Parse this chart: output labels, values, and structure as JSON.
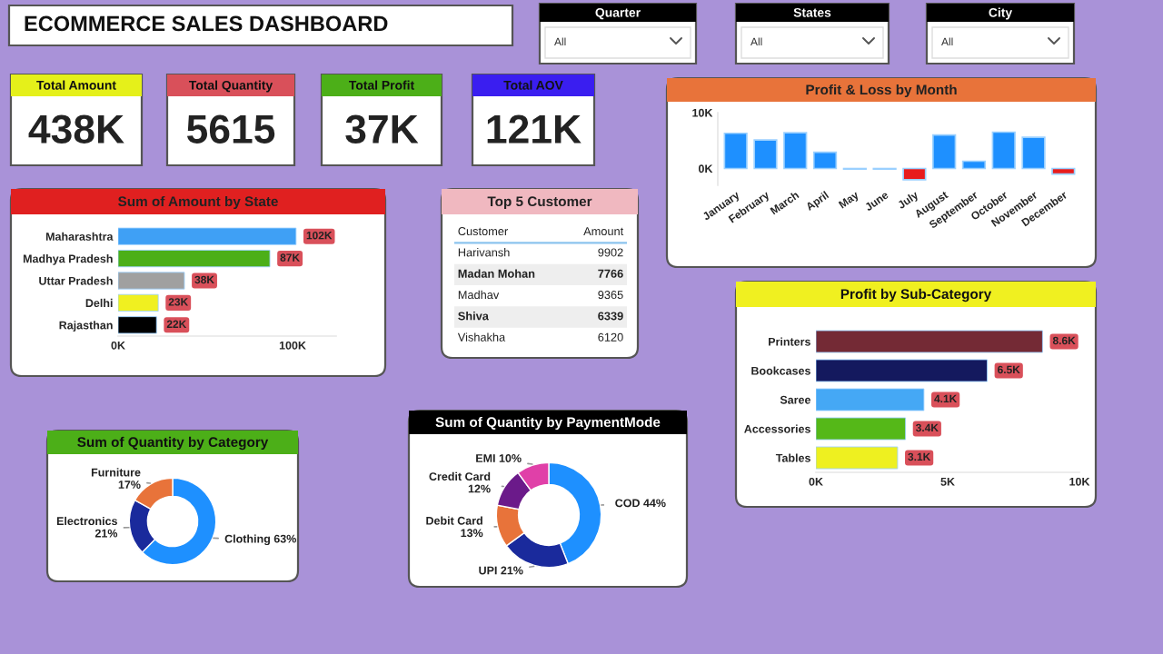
{
  "chart_data": [
    {
      "type": "other",
      "title": "ECOMMERCE SALES DASHBOARD"
    },
    {
      "type": "other",
      "title": "Quarter",
      "annotations": [
        "All"
      ]
    },
    {
      "type": "other",
      "title": "States",
      "annotations": [
        "All"
      ]
    },
    {
      "type": "other",
      "title": "City",
      "annotations": [
        "All"
      ]
    },
    {
      "type": "other",
      "title": "Total Amount",
      "annotations": [
        "438K"
      ]
    },
    {
      "type": "other",
      "title": "Total Quantity",
      "annotations": [
        "5615"
      ]
    },
    {
      "type": "other",
      "title": "Total Profit",
      "annotations": [
        "37K"
      ]
    },
    {
      "type": "other",
      "title": "Total AOV",
      "annotations": [
        "121K"
      ]
    },
    {
      "type": "bar",
      "title": "Profit & Loss by Month",
      "categories": [
        "January",
        "February",
        "March",
        "April",
        "May",
        "June",
        "July",
        "August",
        "September",
        "October",
        "November",
        "December"
      ],
      "values": [
        6300,
        5100,
        6400,
        2900,
        -100,
        -100,
        -2000,
        6000,
        1300,
        6500,
        5600,
        -1000
      ],
      "colors": [
        "#1e90ff",
        "#1e90ff",
        "#1e90ff",
        "#1e90ff",
        "#e81c1c",
        "#e81c1c",
        "#e81c1c",
        "#1e90ff",
        "#1e90ff",
        "#1e90ff",
        "#1e90ff",
        "#e81c1c"
      ],
      "ylim": [
        -3000,
        10000
      ],
      "yticks": [
        {
          "value": 0,
          "label": "0K"
        },
        {
          "value": 10000,
          "label": "10K"
        }
      ]
    },
    {
      "type": "bar",
      "orientation": "horizontal",
      "title": "Sum of Amount by State",
      "categories": [
        "Maharashtra",
        "Madhya Pradesh",
        "Uttar Pradesh",
        "Delhi",
        "Rajasthan"
      ],
      "values": [
        102000,
        87000,
        38000,
        23000,
        22000
      ],
      "value_labels": [
        "102K",
        "87K",
        "38K",
        "23K",
        "22K"
      ],
      "colors": [
        "#3fa0f5",
        "#4caf18",
        "#a0a0a0",
        "#f0f020",
        "#000000"
      ],
      "xlim": [
        0,
        125000
      ],
      "xticks": [
        {
          "value": 0,
          "label": "0K"
        },
        {
          "value": 100000,
          "label": "100K"
        }
      ]
    },
    {
      "type": "other",
      "title": "Top 5 Customer",
      "annotations": [
        "Customer",
        "Amount"
      ],
      "categories": [
        "Harivansh",
        "Madan Mohan",
        "Madhav",
        "Shiva",
        "Vishakha"
      ],
      "values": [
        9902,
        7766,
        9365,
        6339,
        6120
      ],
      "data_labels": true
    },
    {
      "type": "bar",
      "orientation": "horizontal",
      "title": "Profit by Sub-Category",
      "categories": [
        "Printers",
        "Bookcases",
        "Saree",
        "Accessories",
        "Tables"
      ],
      "values": [
        8600,
        6500,
        4100,
        3400,
        3100
      ],
      "value_labels": [
        "8.6K",
        "6.5K",
        "4.1K",
        "3.4K",
        "3.1K"
      ],
      "colors": [
        "#742a35",
        "#14195e",
        "#45a8f5",
        "#55b818",
        "#eef020"
      ],
      "xlim": [
        0,
        10000
      ],
      "xticks": [
        {
          "value": 0,
          "label": "0K"
        },
        {
          "value": 5000,
          "label": "5K"
        },
        {
          "value": 10000,
          "label": "10K"
        }
      ]
    },
    {
      "type": "donut",
      "title": "Sum of Quantity by Category",
      "categories": [
        "Clothing",
        "Electronics",
        "Furniture"
      ],
      "values": [
        63,
        21,
        17
      ],
      "value_labels": [
        "63%",
        "21%",
        "17%"
      ],
      "colors": [
        "#1e90ff",
        "#1a2a9c",
        "#e8733a"
      ]
    },
    {
      "type": "donut",
      "title": "Sum of Quantity by PaymentMode",
      "categories": [
        "COD",
        "UPI",
        "Debit Card",
        "Credit Card",
        "EMI"
      ],
      "values": [
        44,
        21,
        13,
        12,
        10
      ],
      "value_labels": [
        "44%",
        "21%",
        "13%",
        "12%",
        "10%"
      ],
      "colors": [
        "#1e90ff",
        "#1a2a9c",
        "#e8733a",
        "#6b1a8a",
        "#e040a8"
      ]
    }
  ]
}
